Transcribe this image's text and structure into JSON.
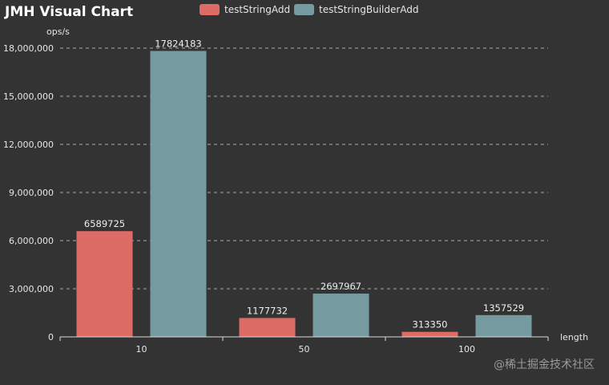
{
  "chart_data": {
    "type": "bar",
    "title": "JMH Visual Chart",
    "xlabel": "length",
    "ylabel": "ops/s",
    "categories": [
      "10",
      "50",
      "100"
    ],
    "series": [
      {
        "name": "testStringAdd",
        "color": "#dd6b66",
        "values": [
          6589725,
          1177732,
          313350
        ]
      },
      {
        "name": "testStringBuilderAdd",
        "color": "#759aa0",
        "values": [
          17824183,
          2697967,
          1357529
        ]
      }
    ],
    "ylim": [
      0,
      18000000
    ],
    "yticks": [
      0,
      3000000,
      6000000,
      9000000,
      12000000,
      15000000,
      18000000
    ],
    "ytick_labels": [
      "0",
      "3,000,000",
      "6,000,000",
      "9,000,000",
      "12,000,000",
      "15,000,000",
      "18,000,000"
    ],
    "grid": true,
    "legend": "top-center"
  },
  "watermark": "@稀土掘金技术社区"
}
